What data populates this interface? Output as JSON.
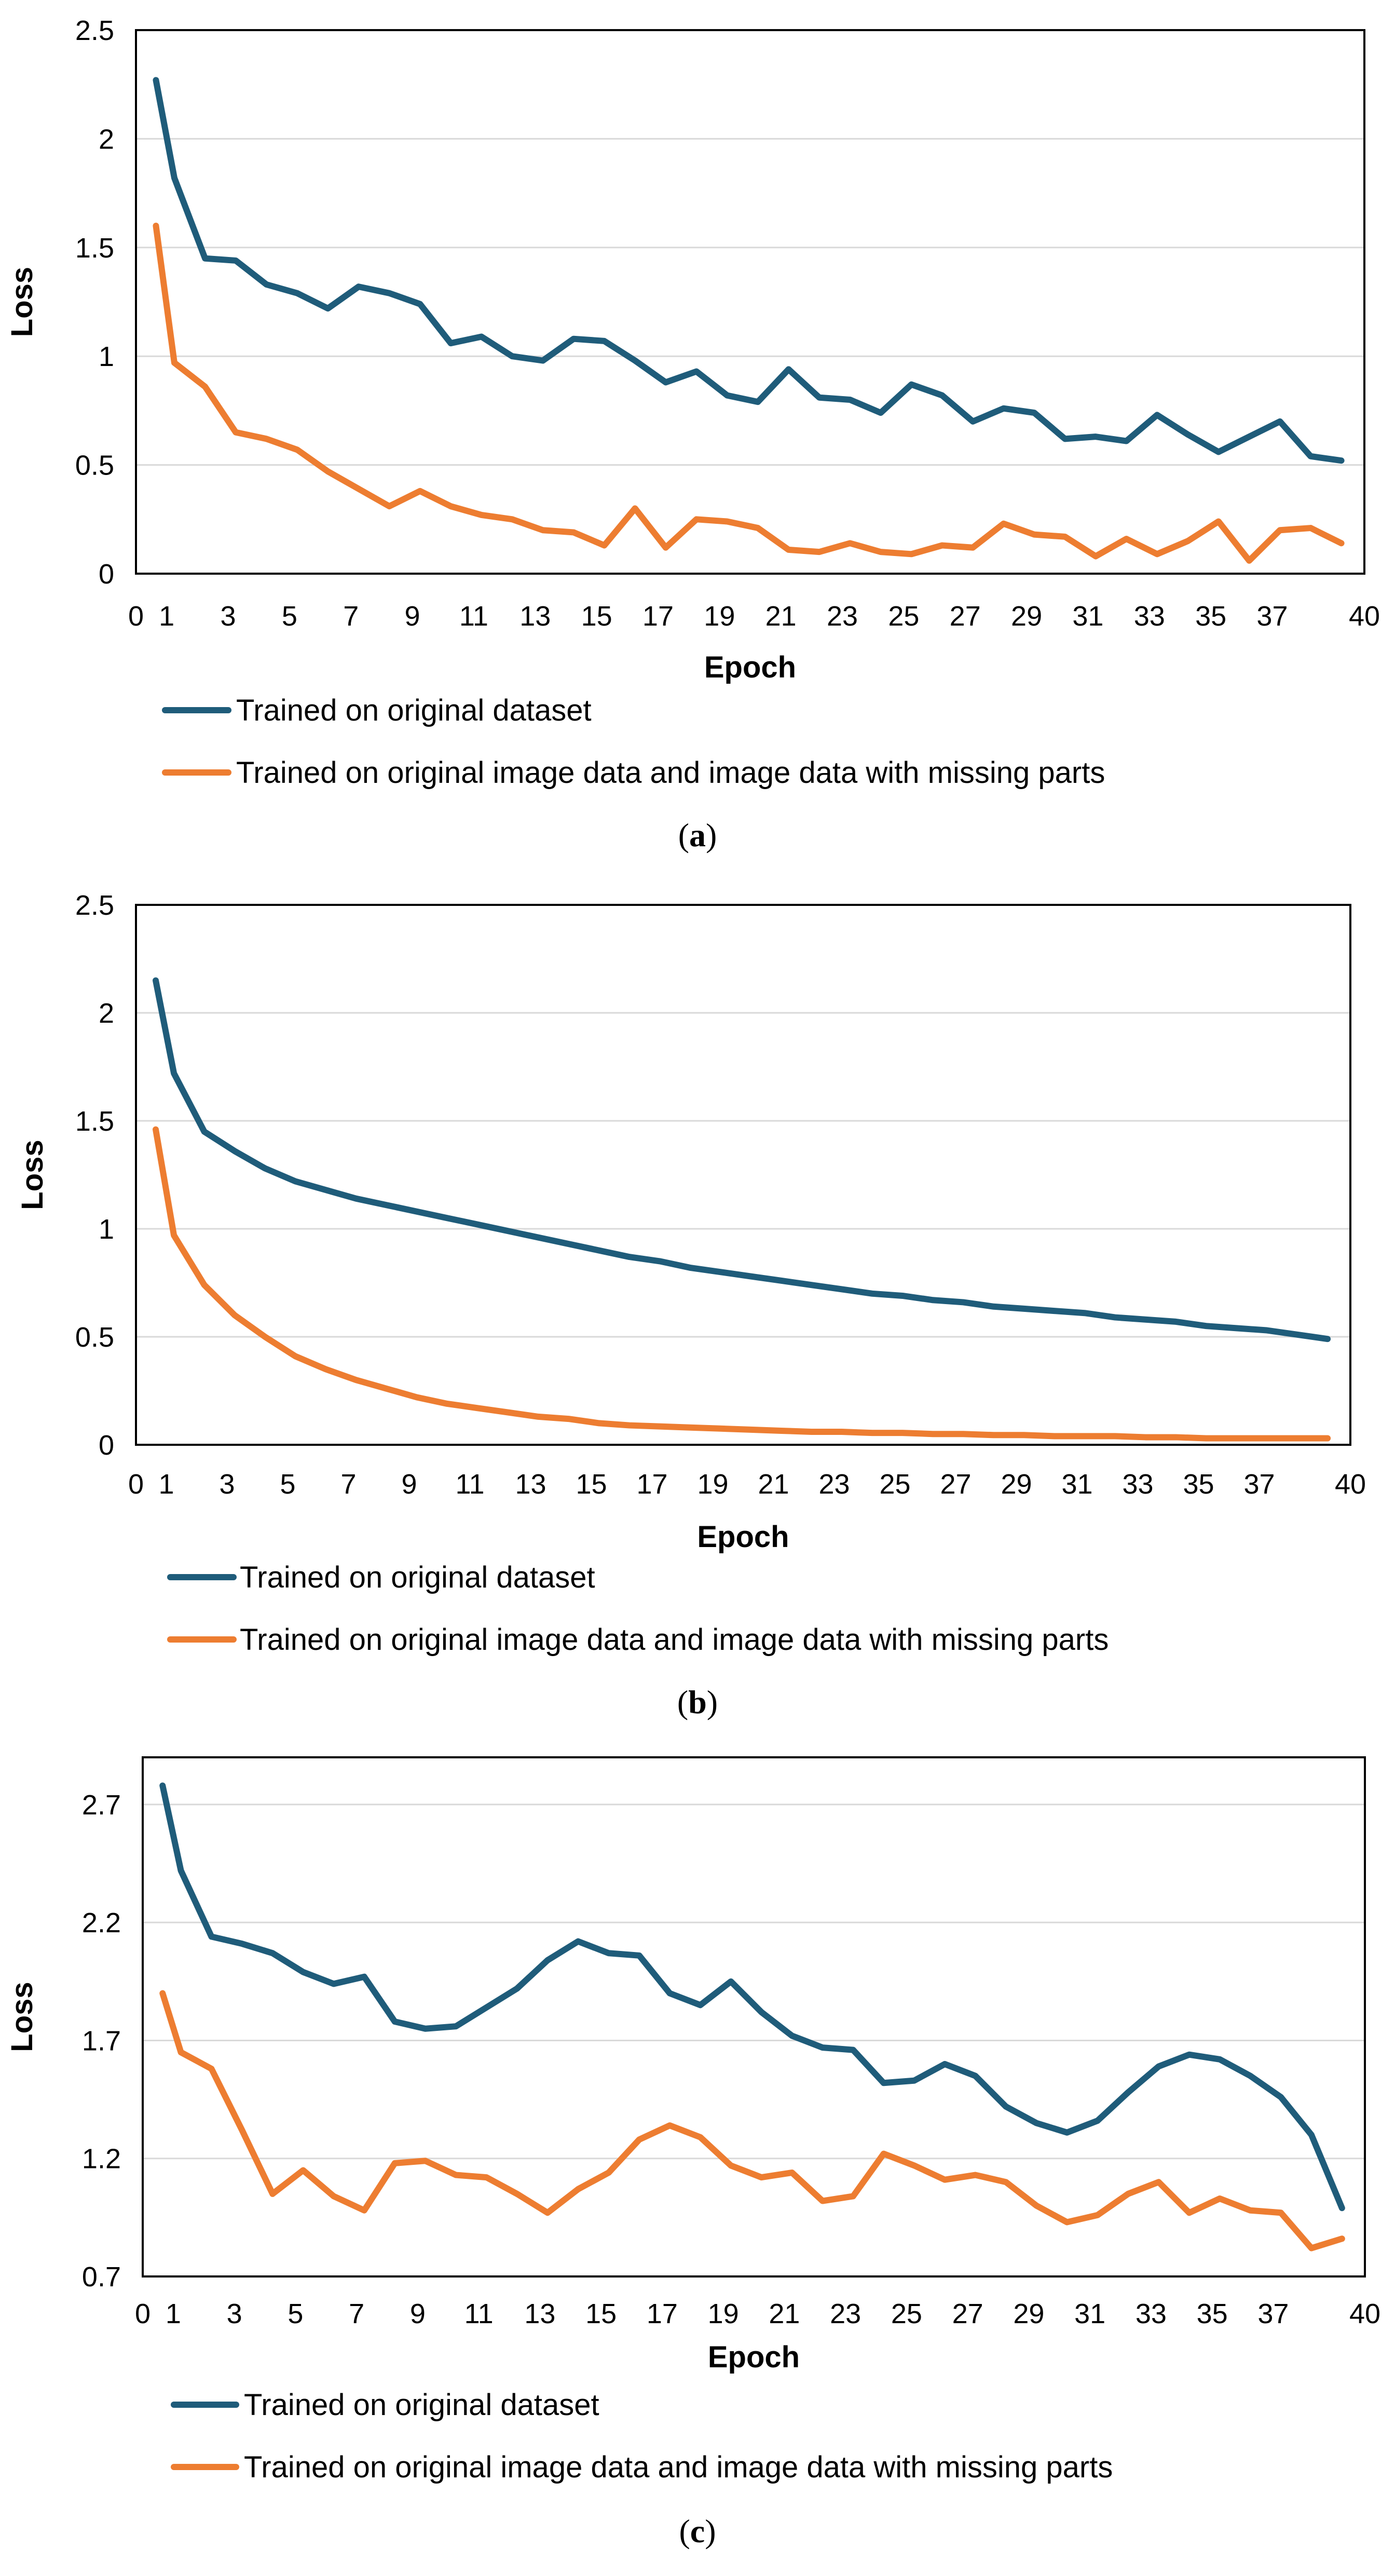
{
  "chart_data": [
    {
      "type": "line",
      "caption_letter": "a",
      "caption_open": "(",
      "caption_close": ")",
      "xlabel": "Epoch",
      "ylabel": "Loss",
      "xlim": [
        0,
        40
      ],
      "ylim": [
        0,
        2.5
      ],
      "x_ticks": [
        0,
        1,
        3,
        5,
        7,
        9,
        11,
        13,
        15,
        17,
        19,
        21,
        23,
        25,
        27,
        29,
        31,
        33,
        35,
        37,
        40
      ],
      "y_ticks": [
        0,
        0.5,
        1,
        1.5,
        2,
        2.5
      ],
      "y_tick_labels": [
        "0",
        "0.5",
        "1",
        "1.5",
        "2",
        "2.5"
      ],
      "x": [
        1,
        2,
        3,
        4,
        5,
        6,
        7,
        8,
        9,
        10,
        11,
        12,
        13,
        14,
        15,
        16,
        17,
        18,
        19,
        20,
        21,
        22,
        23,
        24,
        25,
        26,
        27,
        28,
        29,
        30,
        31,
        32,
        33,
        34,
        35,
        36,
        37,
        38,
        39,
        40
      ],
      "series": [
        {
          "name": "Trained on original dataset",
          "color": "#1f5c7a",
          "values": [
            2.27,
            1.82,
            1.45,
            1.44,
            1.33,
            1.29,
            1.22,
            1.32,
            1.29,
            1.24,
            1.06,
            1.09,
            1.0,
            0.98,
            1.08,
            1.07,
            0.98,
            0.88,
            0.93,
            0.82,
            0.79,
            0.94,
            0.81,
            0.8,
            0.74,
            0.87,
            0.82,
            0.7,
            0.76,
            0.74,
            0.62,
            0.63,
            0.61,
            0.73,
            0.64,
            0.56,
            0.63,
            0.7,
            0.54,
            0.52
          ]
        },
        {
          "name": "Trained on original image data and image data with missing parts",
          "color": "#ed7d31",
          "values": [
            1.6,
            0.97,
            0.86,
            0.65,
            0.62,
            0.57,
            0.47,
            0.39,
            0.31,
            0.38,
            0.31,
            0.27,
            0.25,
            0.2,
            0.19,
            0.13,
            0.3,
            0.12,
            0.25,
            0.24,
            0.21,
            0.11,
            0.1,
            0.14,
            0.1,
            0.09,
            0.13,
            0.12,
            0.23,
            0.18,
            0.17,
            0.08,
            0.16,
            0.09,
            0.15,
            0.24,
            0.06,
            0.2,
            0.21,
            0.14
          ]
        }
      ]
    },
    {
      "type": "line",
      "caption_letter": "b",
      "caption_open": "(",
      "caption_close": ")",
      "xlabel": "Epoch",
      "ylabel": "Loss",
      "xlim": [
        0,
        40
      ],
      "ylim": [
        0,
        2.5
      ],
      "x_ticks": [
        0,
        1,
        3,
        5,
        7,
        9,
        11,
        13,
        15,
        17,
        19,
        21,
        23,
        25,
        27,
        29,
        31,
        33,
        35,
        37,
        40
      ],
      "y_ticks": [
        0,
        0.5,
        1,
        1.5,
        2,
        2.5
      ],
      "y_tick_labels": [
        "0",
        "0.5",
        "1",
        "1.5",
        "2",
        "2.5"
      ],
      "x": [
        1,
        2,
        3,
        4,
        5,
        6,
        7,
        8,
        9,
        10,
        11,
        12,
        13,
        14,
        15,
        16,
        17,
        18,
        19,
        20,
        21,
        22,
        23,
        24,
        25,
        26,
        27,
        28,
        29,
        30,
        31,
        32,
        33,
        34,
        35,
        36,
        37,
        38,
        39,
        40
      ],
      "series": [
        {
          "name": "Trained on original dataset",
          "color": "#1f5c7a",
          "values": [
            2.15,
            1.72,
            1.45,
            1.36,
            1.28,
            1.22,
            1.18,
            1.14,
            1.11,
            1.08,
            1.05,
            1.02,
            0.99,
            0.96,
            0.93,
            0.9,
            0.87,
            0.85,
            0.82,
            0.8,
            0.78,
            0.76,
            0.74,
            0.72,
            0.7,
            0.69,
            0.67,
            0.66,
            0.64,
            0.63,
            0.62,
            0.61,
            0.59,
            0.58,
            0.57,
            0.55,
            0.54,
            0.53,
            0.51,
            0.49
          ]
        },
        {
          "name": "Trained on original image data and image data with missing parts",
          "color": "#ed7d31",
          "values": [
            1.46,
            0.97,
            0.74,
            0.6,
            0.5,
            0.41,
            0.35,
            0.3,
            0.26,
            0.22,
            0.19,
            0.17,
            0.15,
            0.13,
            0.12,
            0.1,
            0.09,
            0.085,
            0.08,
            0.075,
            0.07,
            0.065,
            0.06,
            0.06,
            0.055,
            0.055,
            0.05,
            0.05,
            0.045,
            0.045,
            0.04,
            0.04,
            0.04,
            0.035,
            0.035,
            0.03,
            0.03,
            0.03,
            0.03,
            0.03
          ]
        }
      ]
    },
    {
      "type": "line",
      "caption_letter": "c",
      "caption_open": "(",
      "caption_close": ")",
      "xlabel": "Epoch",
      "ylabel": "Loss",
      "xlim": [
        0,
        40
      ],
      "ylim": [
        0.7,
        2.9
      ],
      "x_ticks": [
        0,
        1,
        3,
        5,
        7,
        9,
        11,
        13,
        15,
        17,
        19,
        21,
        23,
        25,
        27,
        29,
        31,
        33,
        35,
        37,
        40
      ],
      "y_ticks": [
        0.7,
        1.2,
        1.7,
        2.2,
        2.7
      ],
      "y_tick_labels": [
        "0.7",
        "1.2",
        "1.7",
        "2.2",
        "2.7"
      ],
      "x": [
        1,
        2,
        3,
        4,
        5,
        6,
        7,
        8,
        9,
        10,
        11,
        12,
        13,
        14,
        15,
        16,
        17,
        18,
        19,
        20,
        21,
        22,
        23,
        24,
        25,
        26,
        27,
        28,
        29,
        30,
        31,
        32,
        33,
        34,
        35,
        36,
        37,
        38,
        39,
        40
      ],
      "series": [
        {
          "name": "Trained on original dataset",
          "color": "#1f5c7a",
          "values": [
            2.78,
            2.42,
            2.14,
            2.11,
            2.07,
            1.99,
            1.94,
            1.97,
            1.78,
            1.75,
            1.76,
            1.84,
            1.92,
            2.04,
            2.12,
            2.07,
            2.06,
            1.9,
            1.85,
            1.95,
            1.82,
            1.72,
            1.67,
            1.66,
            1.52,
            1.53,
            1.6,
            1.55,
            1.42,
            1.35,
            1.31,
            1.36,
            1.48,
            1.59,
            1.64,
            1.62,
            1.55,
            1.46,
            1.3,
            0.99
          ]
        },
        {
          "name": "Trained on original image data and image data with missing parts",
          "color": "#ed7d31",
          "values": [
            1.9,
            1.65,
            1.58,
            1.32,
            1.05,
            1.15,
            1.04,
            0.98,
            1.18,
            1.19,
            1.13,
            1.12,
            1.05,
            0.97,
            1.07,
            1.14,
            1.28,
            1.34,
            1.29,
            1.17,
            1.12,
            1.14,
            1.02,
            1.04,
            1.22,
            1.17,
            1.11,
            1.13,
            1.1,
            1.0,
            0.93,
            0.96,
            1.05,
            1.1,
            0.97,
            1.03,
            0.98,
            0.97,
            0.82,
            0.86
          ]
        }
      ]
    }
  ]
}
